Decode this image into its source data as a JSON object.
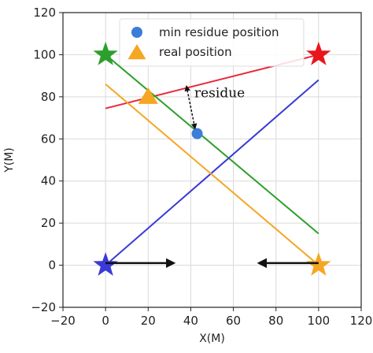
{
  "chart_data": {
    "type": "scatter",
    "xlabel": "X(M)",
    "ylabel": "Y(M)",
    "xlim": [
      -20,
      120
    ],
    "ylim": [
      -20,
      120
    ],
    "xticks": [
      -20,
      0,
      20,
      40,
      60,
      80,
      100,
      120
    ],
    "yticks": [
      -20,
      0,
      20,
      40,
      60,
      80,
      100,
      120
    ],
    "grid": true,
    "legend_position": "top-center",
    "legend": [
      {
        "label": "min residue position",
        "marker": "circle",
        "color": "#3b7dd8"
      },
      {
        "label": "real position",
        "marker": "triangle",
        "color": "#f5a623"
      }
    ],
    "anchors": [
      {
        "x": 0,
        "y": 100,
        "color": "#2ca02c"
      },
      {
        "x": 100,
        "y": 100,
        "color": "#e8161c"
      },
      {
        "x": 0,
        "y": 0,
        "color": "#3a3ad6"
      },
      {
        "x": 100,
        "y": 0,
        "color": "#f5a623"
      }
    ],
    "lines": [
      {
        "color": "#e8293b",
        "x": [
          0,
          100
        ],
        "y": [
          74.5,
          100
        ]
      },
      {
        "color": "#2ca02c",
        "x": [
          0,
          100
        ],
        "y": [
          100,
          15
        ]
      },
      {
        "color": "#3a3ad6",
        "x": [
          0,
          100
        ],
        "y": [
          0,
          88
        ]
      },
      {
        "color": "#f5a623",
        "x": [
          0,
          100
        ],
        "y": [
          86,
          0
        ]
      }
    ],
    "min_residue_position": {
      "x": 43,
      "y": 62.5,
      "color": "#3b7dd8"
    },
    "real_position": {
      "x": 20,
      "y": 80,
      "color": "#f5a623"
    },
    "residue_annotation": {
      "text": "residue",
      "from": {
        "x": 38,
        "y": 85
      },
      "to": {
        "x": 42,
        "y": 65
      }
    },
    "motion_arrows": [
      {
        "from": {
          "x": 0,
          "y": 1
        },
        "to": {
          "x": 32,
          "y": 1
        }
      },
      {
        "from": {
          "x": 100,
          "y": 1
        },
        "to": {
          "x": 72,
          "y": 1
        }
      }
    ]
  }
}
